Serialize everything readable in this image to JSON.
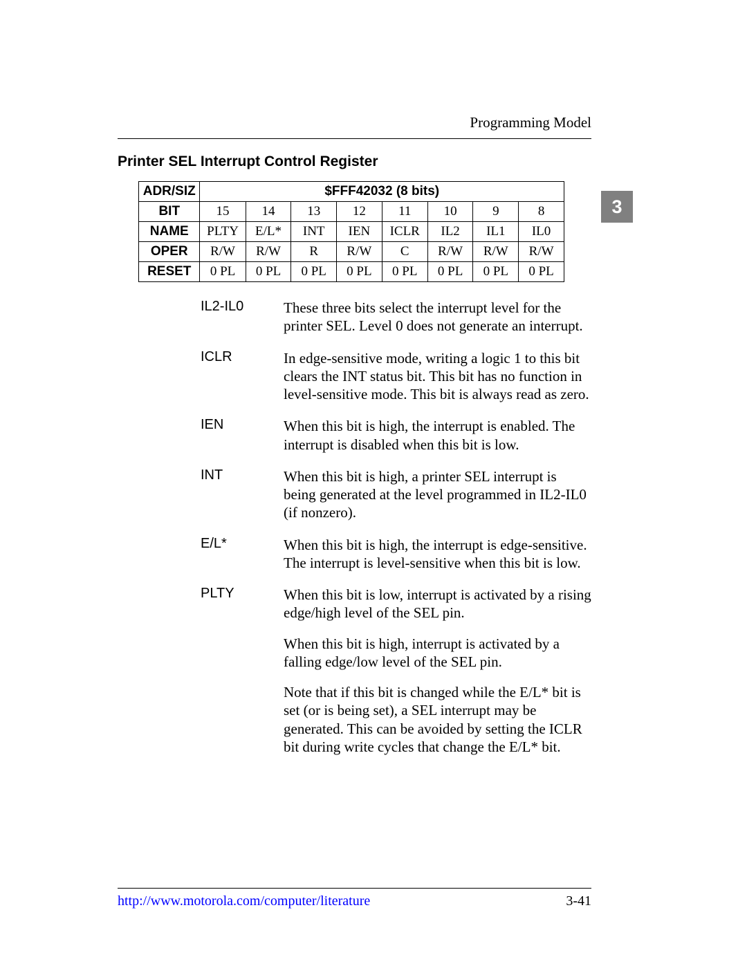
{
  "header": {
    "right": "Programming Model"
  },
  "chapter_tab": "3",
  "section_title": "Printer SEL Interrupt Control Register",
  "table": {
    "row_labels": [
      "ADR/SIZ",
      "BIT",
      "NAME",
      "OPER",
      "RESET"
    ],
    "adr_siz": "$FFF42032 (8 bits)",
    "bit": [
      "15",
      "14",
      "13",
      "12",
      "11",
      "10",
      "9",
      "8"
    ],
    "name": [
      "PLTY",
      "E/L*",
      "INT",
      "IEN",
      "ICLR",
      "IL2",
      "IL1",
      "IL0"
    ],
    "oper": [
      "R/W",
      "R/W",
      "R",
      "R/W",
      "C",
      "R/W",
      "R/W",
      "R/W"
    ],
    "reset": [
      "0 PL",
      "0 PL",
      "0 PL",
      "0 PL",
      "0 PL",
      "0 PL",
      "0 PL",
      "0 PL"
    ]
  },
  "definitions": [
    {
      "term": "IL2-IL0",
      "paras": [
        "These three bits select the interrupt level for the printer SEL. Level 0 does not generate an interrupt."
      ]
    },
    {
      "term": "ICLR",
      "paras": [
        "In edge-sensitive mode, writing a logic 1 to this bit clears the INT status bit. This bit has no function in level-sensitive mode. This bit is always read as zero."
      ]
    },
    {
      "term": "IEN",
      "paras": [
        "When this bit is high, the interrupt is enabled. The interrupt is disabled when this bit is low."
      ]
    },
    {
      "term": "INT",
      "paras": [
        "When this bit is high, a printer SEL interrupt is being generated at the level programmed in IL2-IL0 (if nonzero)."
      ]
    },
    {
      "term": "E/L*",
      "paras": [
        "When this bit is high, the interrupt is edge-sensitive. The interrupt is level-sensitive when this bit is low."
      ]
    },
    {
      "term": "PLTY",
      "paras": [
        "When this bit is low, interrupt is activated by a rising edge/high level of the SEL pin.",
        "When this bit is high, interrupt is activated by a falling edge/low level of the SEL pin.",
        "Note that if this bit is changed while the E/L* bit is set (or is being set), a SEL interrupt may be generated. This can be avoided by setting the ICLR bit during write cycles that change the E/L* bit."
      ]
    }
  ],
  "footer": {
    "url": "http://www.motorola.com/computer/literature",
    "page": "3-41"
  }
}
